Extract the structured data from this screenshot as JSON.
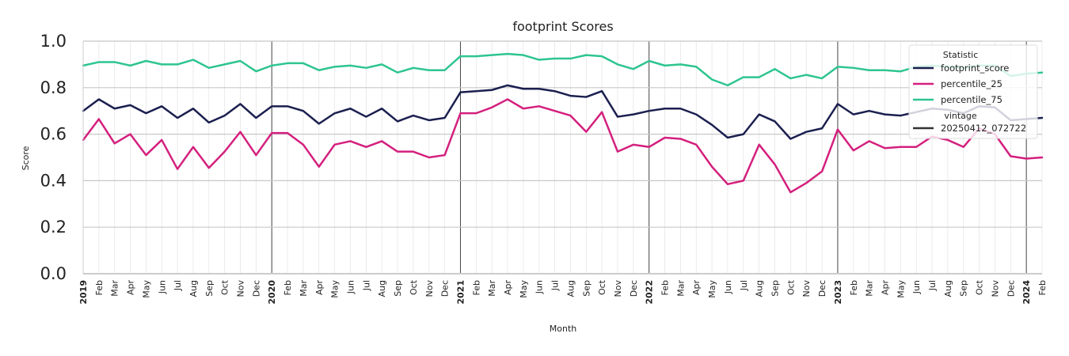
{
  "chart_data": {
    "type": "line",
    "title": "footprint Scores",
    "xlabel": "Month",
    "ylabel": "Score",
    "ylim": [
      0,
      1
    ],
    "yticks": [
      "0.0",
      "0.2",
      "0.4",
      "0.6",
      "0.8",
      "1.0"
    ],
    "grid": true,
    "x_tick_labels": [
      "2019",
      "Feb",
      "Mar",
      "Apr",
      "May",
      "Jun",
      "Jul",
      "Aug",
      "Sep",
      "Oct",
      "Nov",
      "Dec",
      "2020",
      "Feb",
      "Mar",
      "Apr",
      "May",
      "Jun",
      "Jul",
      "Aug",
      "Sep",
      "Oct",
      "Nov",
      "Dec",
      "2021",
      "Feb",
      "Mar",
      "Apr",
      "May",
      "Jun",
      "Jul",
      "Aug",
      "Sep",
      "Oct",
      "Nov",
      "Dec",
      "2022",
      "Feb",
      "Mar",
      "Apr",
      "May",
      "Jun",
      "Jul",
      "Aug",
      "Sep",
      "Oct",
      "Nov",
      "Dec",
      "2023",
      "Feb",
      "Mar",
      "Apr",
      "May",
      "Jun",
      "Jul",
      "Aug",
      "Sep",
      "Oct",
      "Nov",
      "Dec",
      "2024",
      "Feb"
    ],
    "year_tick_labels": [
      "2019",
      "2020",
      "2021",
      "2022",
      "2023",
      "2024"
    ],
    "legend": {
      "placement": "top-right",
      "statistic_title": "Statistic",
      "vintage_title": "vintage",
      "vintage_entry": "20250412_072722"
    },
    "series": [
      {
        "name": "footprint_score",
        "color": "#1b1f4f",
        "values": [
          0.7,
          0.75,
          0.71,
          0.725,
          0.69,
          0.72,
          0.67,
          0.71,
          0.65,
          0.68,
          0.73,
          0.67,
          0.72,
          0.72,
          0.7,
          0.645,
          0.69,
          0.71,
          0.675,
          0.71,
          0.655,
          0.68,
          0.66,
          0.67,
          0.78,
          0.785,
          0.79,
          0.81,
          0.795,
          0.795,
          0.785,
          0.765,
          0.76,
          0.785,
          0.675,
          0.685,
          0.7,
          0.71,
          0.71,
          0.685,
          0.64,
          0.585,
          0.6,
          0.685,
          0.655,
          0.58,
          0.61,
          0.625,
          0.73,
          0.685,
          0.7,
          0.685,
          0.68,
          0.695,
          0.71,
          0.705,
          0.69,
          0.72,
          0.715,
          0.66,
          0.665,
          0.67
        ]
      },
      {
        "name": "percentile_25",
        "color": "#d4207e",
        "values": [
          0.575,
          0.665,
          0.56,
          0.6,
          0.51,
          0.575,
          0.45,
          0.545,
          0.455,
          0.525,
          0.61,
          0.51,
          0.605,
          0.605,
          0.555,
          0.46,
          0.555,
          0.57,
          0.545,
          0.57,
          0.525,
          0.525,
          0.5,
          0.51,
          0.69,
          0.69,
          0.715,
          0.75,
          0.71,
          0.72,
          0.7,
          0.68,
          0.61,
          0.695,
          0.525,
          0.555,
          0.545,
          0.585,
          0.58,
          0.555,
          0.46,
          0.385,
          0.4,
          0.555,
          0.47,
          0.35,
          0.39,
          0.44,
          0.62,
          0.53,
          0.57,
          0.54,
          0.545,
          0.545,
          0.59,
          0.575,
          0.545,
          0.625,
          0.6,
          0.505,
          0.495,
          0.5
        ]
      },
      {
        "name": "percentile_75",
        "color": "#2ec58f",
        "values": [
          0.895,
          0.91,
          0.91,
          0.895,
          0.915,
          0.9,
          0.9,
          0.92,
          0.885,
          0.9,
          0.915,
          0.87,
          0.895,
          0.905,
          0.905,
          0.875,
          0.89,
          0.895,
          0.885,
          0.9,
          0.865,
          0.885,
          0.875,
          0.875,
          0.935,
          0.935,
          0.94,
          0.945,
          0.94,
          0.92,
          0.925,
          0.925,
          0.94,
          0.935,
          0.9,
          0.88,
          0.915,
          0.895,
          0.9,
          0.89,
          0.835,
          0.81,
          0.845,
          0.845,
          0.88,
          0.84,
          0.855,
          0.84,
          0.89,
          0.885,
          0.875,
          0.875,
          0.87,
          0.89,
          0.895,
          0.89,
          0.885,
          0.895,
          0.895,
          0.85,
          0.86,
          0.865
        ]
      }
    ]
  }
}
